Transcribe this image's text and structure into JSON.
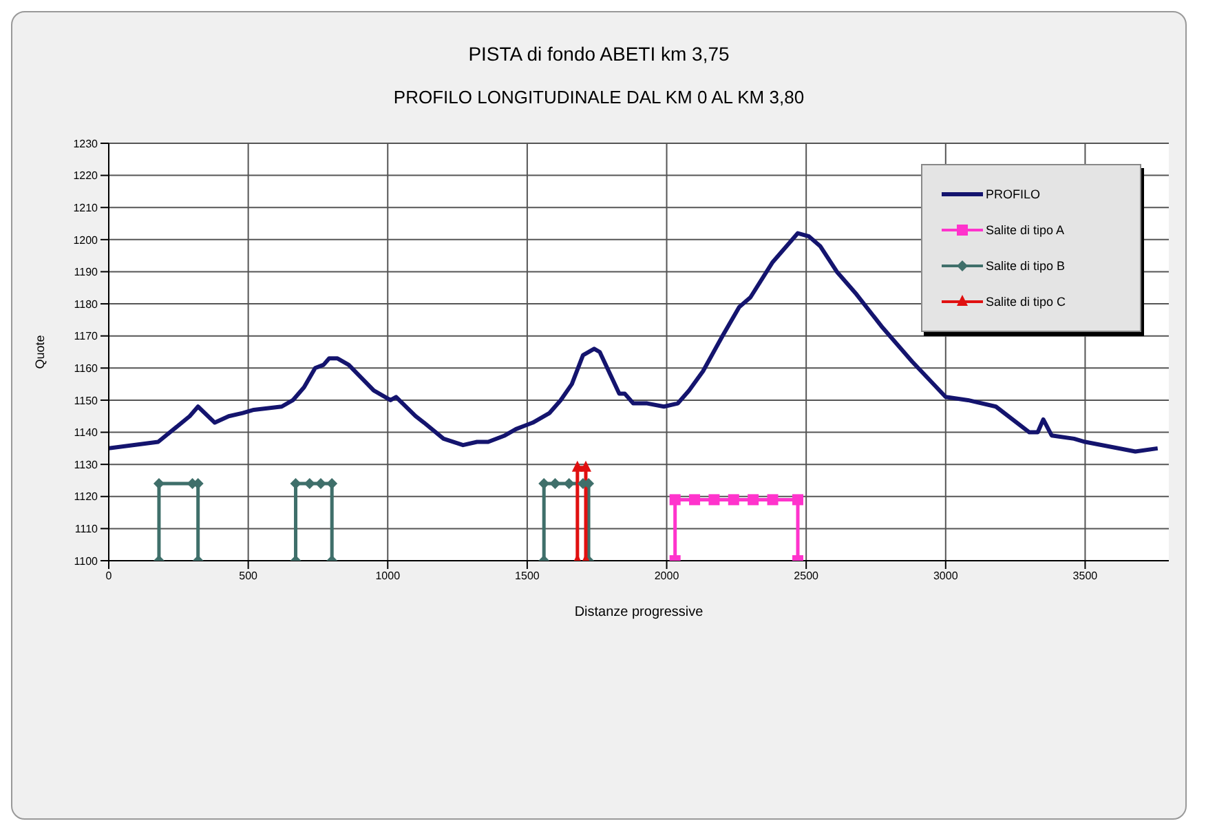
{
  "chart_data": {
    "type": "line",
    "title": "PISTA di fondo ABETI km 3,75",
    "subtitle": "PROFILO LONGITUDINALE DAL KM 0 AL KM 3,80",
    "xlabel": "Distanze progressive",
    "ylabel": "Quote",
    "xlim": [
      0,
      3800
    ],
    "xticks": [
      0,
      500,
      1000,
      1500,
      2000,
      2500,
      3000,
      3500
    ],
    "ylim": [
      1100,
      1230
    ],
    "yticks": [
      1100,
      1110,
      1120,
      1130,
      1140,
      1150,
      1160,
      1170,
      1180,
      1190,
      1200,
      1210,
      1220,
      1230
    ],
    "grid": true,
    "legend": "top right",
    "series": [
      {
        "name": "PROFILO",
        "color": "#14146e",
        "marker": "none",
        "x": [
          0,
          177,
          290,
          320,
          380,
          430,
          480,
          520,
          620,
          660,
          700,
          740,
          770,
          790,
          820,
          860,
          950,
          1010,
          1030,
          1100,
          1130,
          1200,
          1270,
          1320,
          1360,
          1420,
          1460,
          1520,
          1580,
          1620,
          1660,
          1700,
          1740,
          1760,
          1830,
          1850,
          1880,
          1930,
          1990,
          2040,
          2080,
          2130,
          2200,
          2260,
          2300,
          2380,
          2470,
          2510,
          2550,
          2610,
          2680,
          2770,
          2880,
          3000,
          3080,
          3180,
          3300,
          3330,
          3350,
          3380,
          3460,
          3500,
          3680,
          3760
        ],
        "values": [
          1135,
          1137,
          1145,
          1148,
          1143,
          1145,
          1146,
          1147,
          1148,
          1150,
          1154,
          1160,
          1161,
          1163,
          1163,
          1161,
          1153,
          1150,
          1151,
          1145,
          1143,
          1138,
          1136,
          1137,
          1137,
          1139,
          1141,
          1143,
          1146,
          1150,
          1155,
          1164,
          1166,
          1165,
          1152,
          1152,
          1149,
          1149,
          1148,
          1149,
          1153,
          1159,
          1170,
          1179,
          1182,
          1193,
          1202,
          1201,
          1198,
          1190,
          1183,
          1173,
          1162,
          1151,
          1150,
          1148,
          1140,
          1140,
          1144,
          1139,
          1138,
          1137,
          1134,
          1135
        ]
      },
      {
        "name": "Salite di tipo A",
        "color": "#ff33cc",
        "marker": "square",
        "x": [
          2030,
          2030,
          2100,
          2170,
          2240,
          2310,
          2380,
          2470,
          2470
        ],
        "values": [
          1100,
          1119,
          1119,
          1119,
          1119,
          1119,
          1119,
          1119,
          1100
        ]
      },
      {
        "name": "Salite di tipo B",
        "color": "#3f6f6a",
        "marker": "diamond",
        "x": [
          180,
          180,
          300,
          320,
          320
        ],
        "values": [
          1100,
          1124,
          1124,
          1124,
          1100
        ]
      },
      {
        "color": "#3f6f6a",
        "marker": "diamond",
        "x": [
          670,
          670,
          720,
          760,
          800,
          800
        ],
        "values": [
          1100,
          1124,
          1124,
          1124,
          1124,
          1100
        ]
      },
      {
        "color": "#3f6f6a",
        "marker": "diamond",
        "x": [
          1560,
          1560,
          1600,
          1650,
          1700,
          1720,
          1720
        ],
        "values": [
          1100,
          1124,
          1124,
          1124,
          1124,
          1124,
          1100
        ]
      },
      {
        "name": "Salite di tipo C",
        "color": "#e01010",
        "marker": "triangle",
        "x": [
          1680,
          1680,
          1710,
          1710
        ],
        "values": [
          1100,
          1129,
          1129,
          1100
        ]
      }
    ]
  }
}
